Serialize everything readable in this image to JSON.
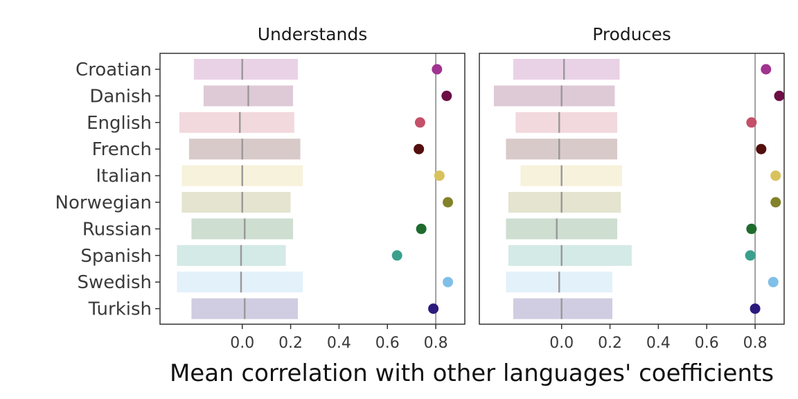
{
  "chart_data": {
    "type": "scatter",
    "xlabel": "Mean correlation with other languages' coefficients",
    "xlim": [
      -0.34,
      0.92
    ],
    "xticks": [
      "0.0",
      "0.2",
      "0.4",
      "0.6",
      "0.8"
    ],
    "xtick_values": [
      0,
      0.2,
      0.4,
      0.6,
      0.8
    ],
    "reference_line_x": 0.8,
    "languages": [
      "Croatian",
      "Danish",
      "English",
      "French",
      "Italian",
      "Norwegian",
      "Russian",
      "Spanish",
      "Swedish",
      "Turkish"
    ],
    "colors": [
      "#a0348f",
      "#6b0f45",
      "#c4506a",
      "#520f0d",
      "#d9c25c",
      "#828229",
      "#1f6b2e",
      "#3aa08c",
      "#7fbfe8",
      "#2b1a7c"
    ],
    "panels": [
      {
        "title": "Understands",
        "points": [
          0.805,
          0.845,
          0.735,
          0.73,
          0.815,
          0.85,
          0.74,
          0.64,
          0.85,
          0.79
        ],
        "range_low": [
          -0.2,
          -0.16,
          -0.26,
          -0.22,
          -0.25,
          -0.25,
          -0.21,
          -0.27,
          -0.27,
          -0.21
        ],
        "range_high": [
          0.23,
          0.21,
          0.215,
          0.24,
          0.25,
          0.2,
          0.21,
          0.18,
          0.25,
          0.23
        ],
        "range_mean": [
          0.0,
          0.025,
          -0.01,
          0.0,
          0.0,
          0.0,
          0.01,
          -0.005,
          -0.005,
          0.01
        ]
      },
      {
        "title": "Produces",
        "points": [
          0.845,
          0.9,
          0.785,
          0.825,
          0.885,
          0.885,
          0.785,
          0.78,
          0.875,
          0.8
        ],
        "range_low": [
          -0.2,
          -0.28,
          -0.19,
          -0.23,
          -0.17,
          -0.22,
          -0.23,
          -0.22,
          -0.23,
          -0.2
        ],
        "range_high": [
          0.24,
          0.22,
          0.23,
          0.23,
          0.25,
          0.245,
          0.23,
          0.29,
          0.21,
          0.21
        ],
        "range_mean": [
          0.01,
          0.0,
          -0.01,
          -0.01,
          0.0,
          0.0,
          -0.02,
          0.0,
          -0.01,
          0.0
        ]
      }
    ]
  }
}
